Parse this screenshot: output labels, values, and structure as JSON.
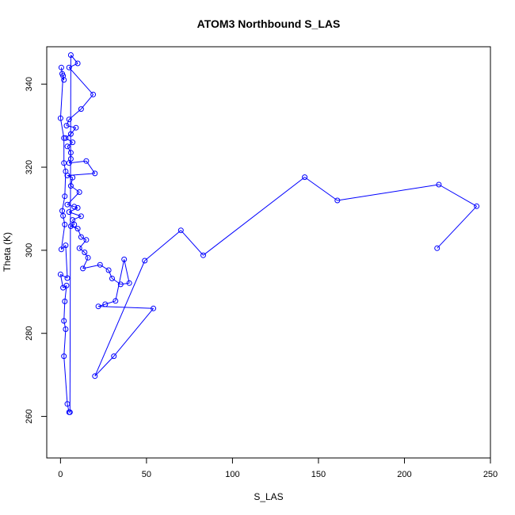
{
  "chart_data": {
    "type": "scatter",
    "title": "ATOM3 Northbound S_LAS",
    "xlabel": "S_LAS",
    "ylabel": "Theta (K)",
    "xlim": [
      -8,
      250
    ],
    "ylim": [
      250,
      349
    ],
    "xticks": [
      0,
      50,
      100,
      150,
      200,
      250
    ],
    "yticks": [
      260,
      280,
      300,
      320,
      340
    ],
    "grid": false,
    "legend": "none",
    "connected": true,
    "series": [
      {
        "color": "#0000FF",
        "marker": "open-circle",
        "points": [
          [
            0.5,
            344
          ],
          [
            1,
            342.5
          ],
          [
            2,
            341
          ],
          [
            1.5,
            342
          ],
          [
            0,
            331.8
          ],
          [
            2,
            327
          ],
          [
            2,
            321
          ],
          [
            3,
            319
          ],
          [
            2.5,
            313
          ],
          [
            1,
            309.5
          ],
          [
            1.5,
            308.3
          ],
          [
            2.5,
            306.2
          ],
          [
            0.5,
            300.2
          ],
          [
            3,
            301.2
          ],
          [
            4,
            293.3
          ],
          [
            0,
            294.2
          ],
          [
            1.5,
            291
          ],
          [
            3.5,
            291.5
          ],
          [
            2.5,
            287.7
          ],
          [
            2,
            283
          ],
          [
            3,
            281
          ],
          [
            2,
            274.5
          ],
          [
            4,
            263
          ],
          [
            5,
            261
          ],
          [
            5.5,
            261
          ],
          [
            6,
            347
          ],
          [
            10,
            345
          ],
          [
            5,
            344
          ],
          [
            19,
            337.5
          ],
          [
            12,
            334
          ],
          [
            5,
            331.5
          ],
          [
            3.5,
            330
          ],
          [
            9,
            329.5
          ],
          [
            6,
            328
          ],
          [
            3,
            327
          ],
          [
            7,
            326
          ],
          [
            4,
            325
          ],
          [
            6,
            323.5
          ],
          [
            6,
            322
          ],
          [
            5,
            321
          ],
          [
            15,
            321.5
          ],
          [
            20,
            318.5
          ],
          [
            4,
            318
          ],
          [
            7,
            317.5
          ],
          [
            6,
            315.5
          ],
          [
            11,
            314
          ],
          [
            4,
            311
          ],
          [
            8,
            310.5
          ],
          [
            10,
            310.2
          ],
          [
            5,
            309.2
          ],
          [
            12,
            308.2
          ],
          [
            7,
            307.3
          ],
          [
            8,
            306.2
          ],
          [
            6,
            305.8
          ],
          [
            10,
            305.2
          ],
          [
            12,
            303.2
          ],
          [
            15,
            302.5
          ],
          [
            11,
            300.5
          ],
          [
            14,
            299.5
          ],
          [
            16,
            298.2
          ],
          [
            13,
            295.6
          ],
          [
            23,
            296.5
          ],
          [
            28,
            295.2
          ],
          [
            30,
            293.2
          ],
          [
            35,
            291.8
          ],
          [
            40,
            292.1
          ],
          [
            37,
            297.8
          ],
          [
            32,
            287.8
          ],
          [
            26,
            287
          ],
          [
            22,
            286.5
          ],
          [
            54,
            286
          ],
          [
            31,
            274.5
          ],
          [
            20,
            269.7
          ],
          [
            49,
            297.5
          ],
          [
            70,
            304.8
          ],
          [
            83,
            298.8
          ],
          [
            142,
            317.6
          ],
          [
            161,
            312
          ],
          [
            220,
            315.8
          ],
          [
            242,
            310.6
          ],
          [
            219,
            300.5
          ]
        ]
      }
    ]
  }
}
